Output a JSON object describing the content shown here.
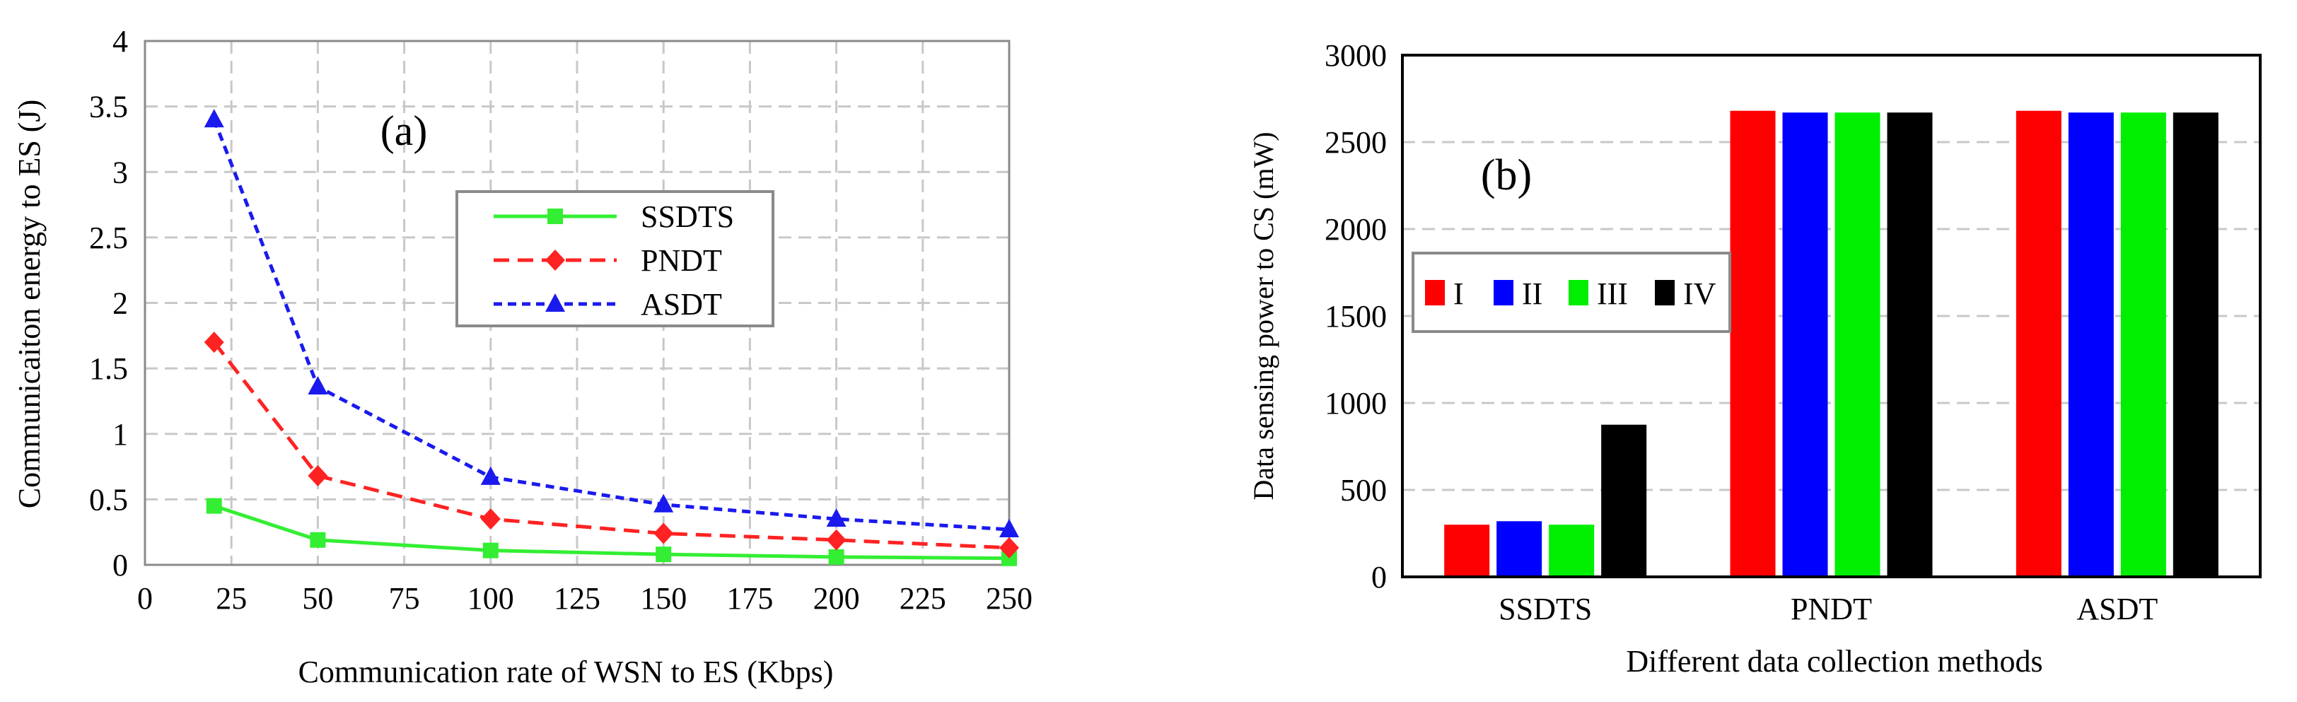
{
  "chart_data": [
    {
      "type": "line",
      "panel_label": "(a)",
      "xlabel": "Communication rate of WSN to ES (Kbps)",
      "ylabel": "Communicaiton energy to ES (J)",
      "xlim": [
        0,
        250
      ],
      "ylim": [
        0,
        4
      ],
      "xticks": [
        "0",
        "25",
        "50",
        "75",
        "100",
        "125",
        "150",
        "175",
        "200",
        "225",
        "250"
      ],
      "yticks": [
        "0",
        "0.5",
        "1",
        "1.5",
        "2",
        "2.5",
        "3",
        "3.5",
        "4"
      ],
      "grid": true,
      "legend_position": "upper-middle",
      "x": [
        20,
        50,
        100,
        150,
        200,
        250
      ],
      "series": [
        {
          "name": "SSDTS",
          "color": "#33ee33",
          "marker": "square",
          "dash": "solid",
          "values": [
            0.45,
            0.19,
            0.11,
            0.08,
            0.06,
            0.05
          ]
        },
        {
          "name": "PNDT",
          "color": "#ff2222",
          "marker": "diamond",
          "dash": "dashed",
          "values": [
            1.7,
            0.68,
            0.35,
            0.24,
            0.19,
            0.13
          ]
        },
        {
          "name": "ASDT",
          "color": "#1a1aee",
          "marker": "triangle",
          "dash": "dotted",
          "values": [
            3.4,
            1.36,
            0.67,
            0.46,
            0.35,
            0.27
          ]
        }
      ]
    },
    {
      "type": "bar",
      "panel_label": "(b)",
      "xlabel": "Different data collection methods",
      "ylabel": "Data sensing power to CS (mW)",
      "ylim": [
        0,
        3000
      ],
      "yticks": [
        "0",
        "500",
        "1000",
        "1500",
        "2000",
        "2500",
        "3000"
      ],
      "grid": true,
      "legend_position": "middle-left",
      "categories": [
        "SSDTS",
        "PNDT",
        "ASDT"
      ],
      "series": [
        {
          "name": "I",
          "color": "#ff0000",
          "values": [
            300,
            2680,
            2680
          ]
        },
        {
          "name": "II",
          "color": "#0000ff",
          "values": [
            320,
            2670,
            2670
          ]
        },
        {
          "name": "III",
          "color": "#00ee00",
          "values": [
            300,
            2670,
            2670
          ]
        },
        {
          "name": "IV",
          "color": "#000000",
          "values": [
            875,
            2670,
            2670
          ]
        }
      ]
    }
  ]
}
